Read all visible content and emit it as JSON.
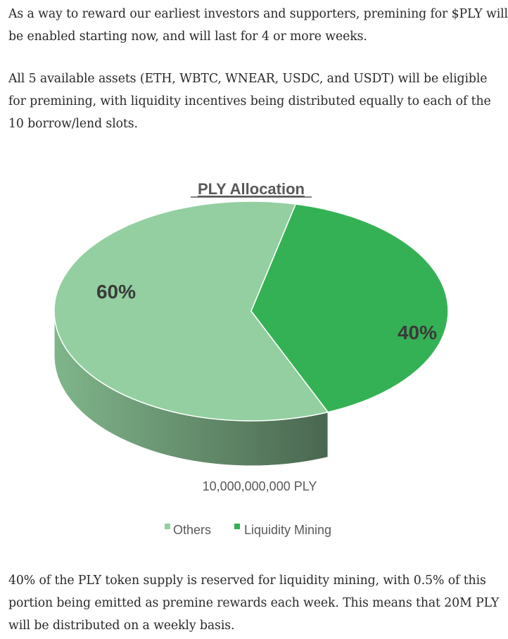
{
  "article": {
    "para1": [
      "As a way to reward our earliest investors and supporters, premining for $PLY will",
      "be enabled starting now, and will last for 4 or more weeks."
    ],
    "para2": [
      "All 5 available assets (ETH, WBTC, WNEAR, USDC, and USDT) will be eligible",
      "for premining, with liquidity incentives being distributed equally to each of the",
      "10 borrow/lend slots."
    ],
    "para3": [
      "40% of the PLY token supply is reserved for liquidity mining, with 0.5% of this",
      "portion being emitted as premine rewards each week. This means that 20M PLY",
      "will be distributed on a weekly basis."
    ]
  },
  "chart_data": {
    "type": "pie",
    "title": "PLY Allocation",
    "subtitle": "10,000,000,000 PLY",
    "slices": [
      {
        "name": "Others",
        "value": 60,
        "label": "60%",
        "color": "#93CFA0"
      },
      {
        "name": "Liquidity Mining",
        "value": 40,
        "label": "40%",
        "color": "#34B155"
      }
    ],
    "legend_placement": "bottom",
    "style": "3d"
  }
}
